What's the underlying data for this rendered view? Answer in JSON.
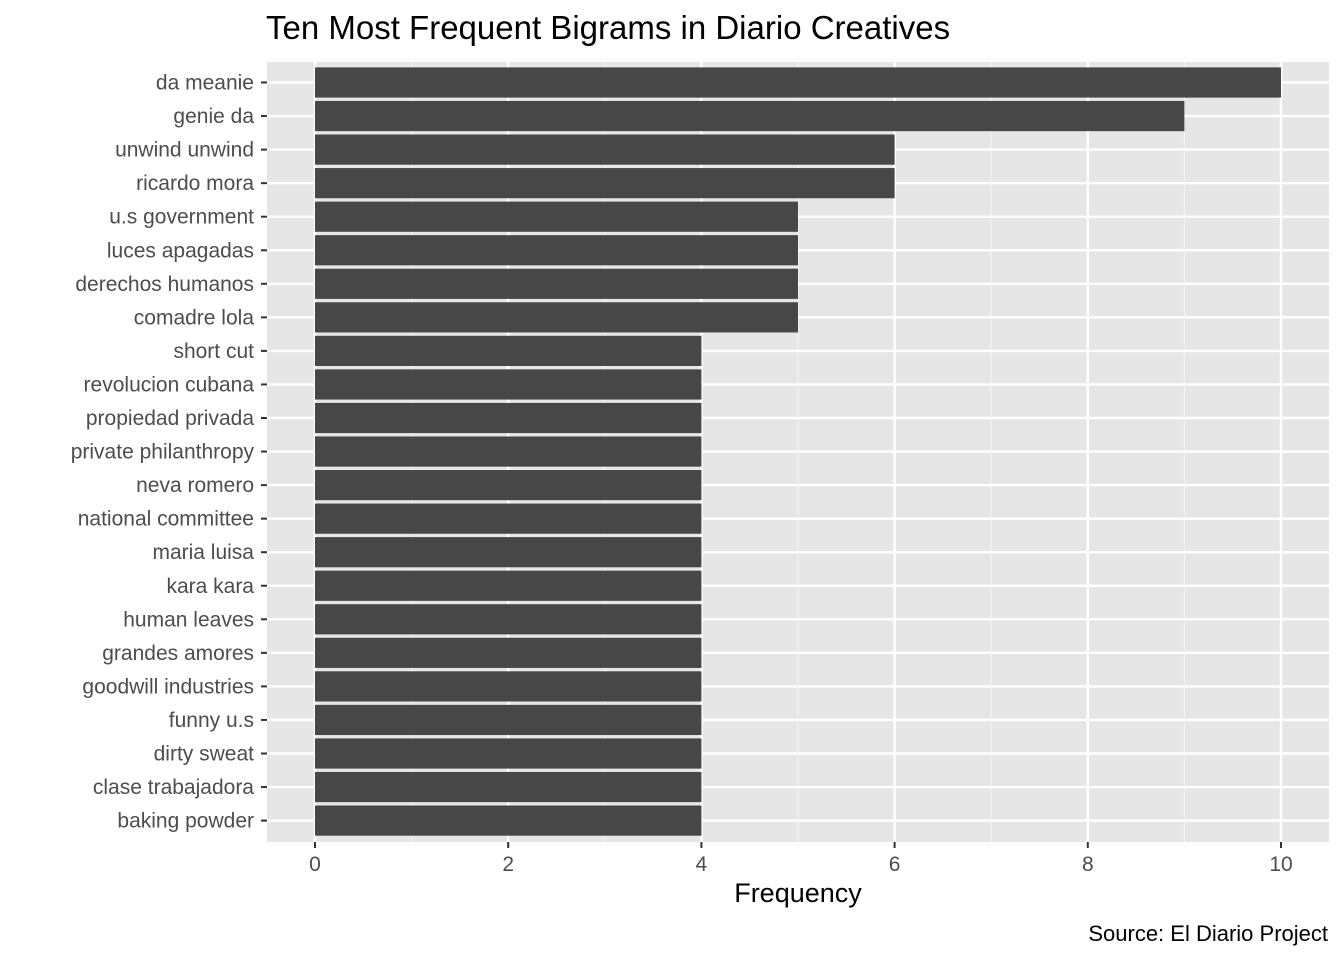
{
  "chart_data": {
    "type": "bar",
    "orientation": "horizontal",
    "title": "Ten Most Frequent Bigrams in Diario Creatives",
    "xlabel": "Frequency",
    "ylabel": "",
    "caption": "Source: El Diario Project",
    "categories": [
      "da meanie",
      "genie da",
      "unwind unwind",
      "ricardo mora",
      "u.s government",
      "luces apagadas",
      "derechos humanos",
      "comadre lola",
      "short cut",
      "revolucion cubana",
      "propiedad privada",
      "private philanthropy",
      "neva romero",
      "national committee",
      "maria luisa",
      "kara kara",
      "human leaves",
      "grandes amores",
      "goodwill industries",
      "funny u.s",
      "dirty sweat",
      "clase trabajadora",
      "baking powder"
    ],
    "values": [
      10,
      9,
      6,
      6,
      5,
      5,
      5,
      5,
      4,
      4,
      4,
      4,
      4,
      4,
      4,
      4,
      4,
      4,
      4,
      4,
      4,
      4,
      4
    ],
    "xlim": [
      0,
      10
    ],
    "xticks": [
      0,
      2,
      4,
      6,
      8,
      10
    ],
    "grid": true,
    "colors": {
      "bar": "#474747",
      "panel_background": "#e6e6e6",
      "grid_major": "#ffffff",
      "grid_minor": "#f2f2f2"
    }
  }
}
